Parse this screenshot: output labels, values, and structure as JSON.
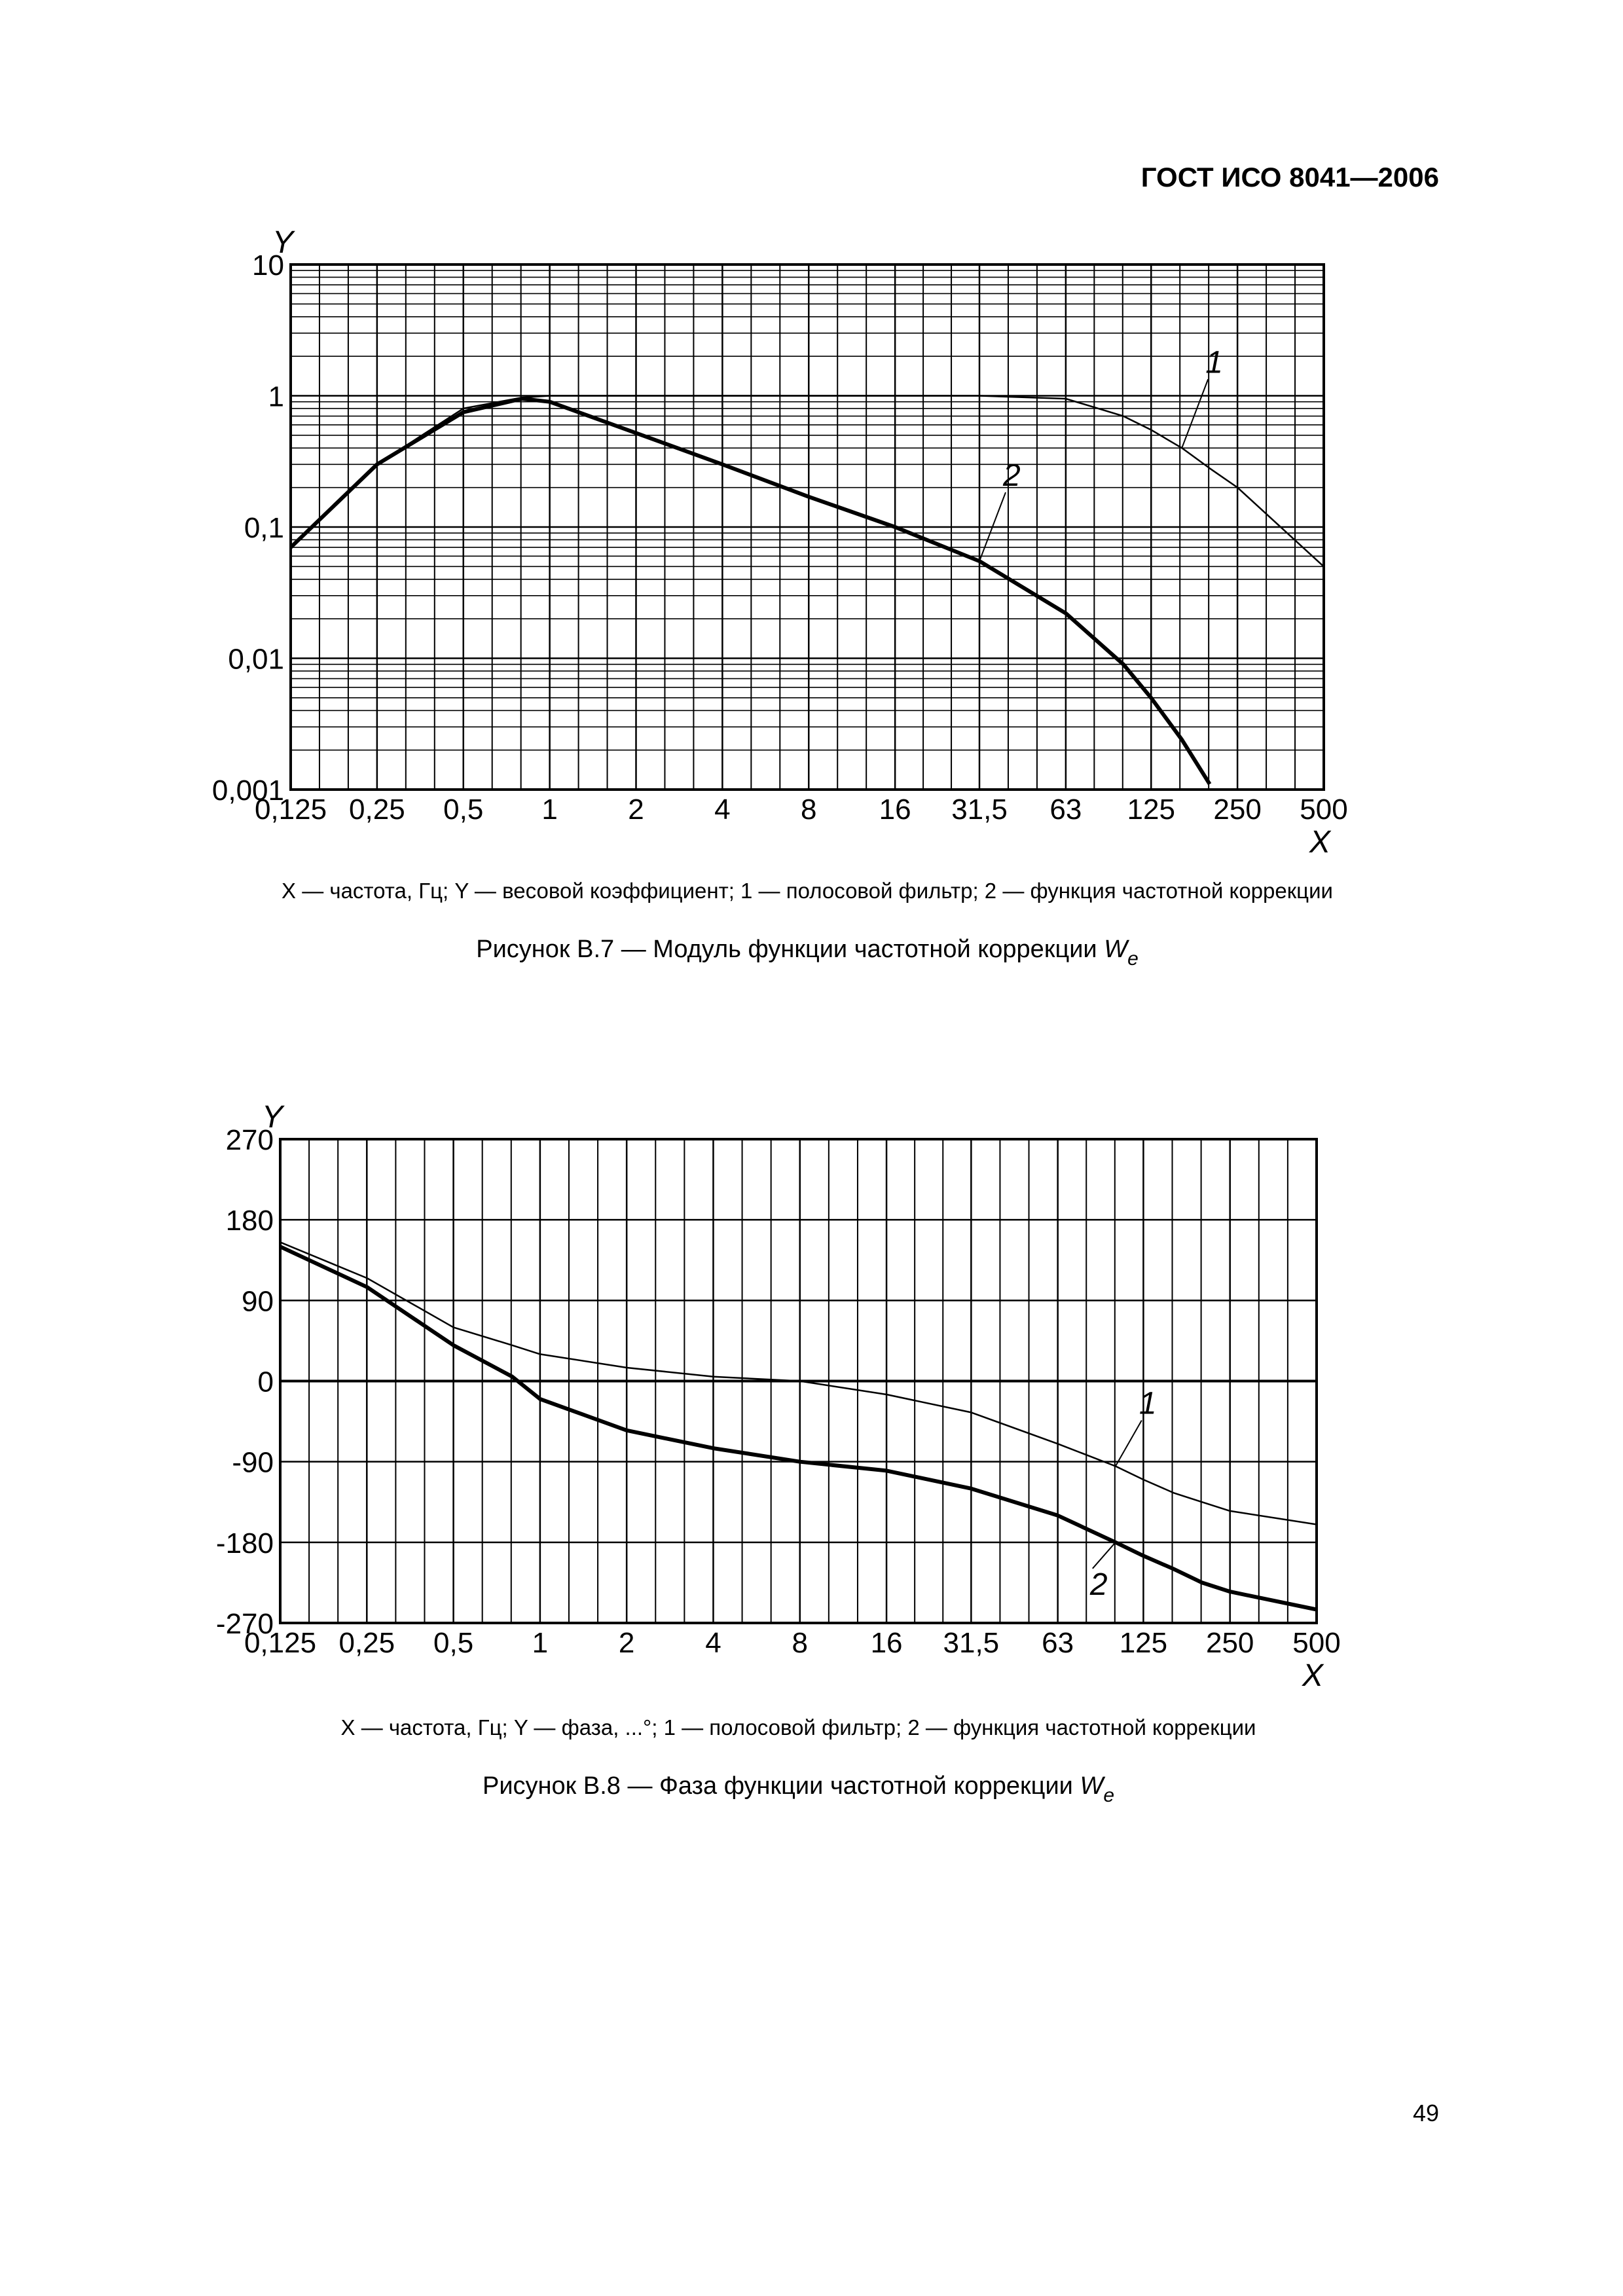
{
  "header": "ГОСТ ИСО 8041—2006",
  "page_number": "49",
  "chart_data": [
    {
      "type": "line",
      "x_label": "X",
      "y_label": "Y",
      "xscale": "log",
      "yscale": "log",
      "xlim": [
        0.125,
        500
      ],
      "ylim": [
        0.001,
        10
      ],
      "xticks": [
        {
          "value": 0.125,
          "label": "0,125"
        },
        {
          "value": 0.25,
          "label": "0,25"
        },
        {
          "value": 0.5,
          "label": "0,5"
        },
        1,
        2,
        4,
        8,
        16,
        {
          "value": 31.5,
          "label": "31,5"
        },
        63,
        125,
        250,
        500
      ],
      "yticks": [
        {
          "value": 0.001,
          "label": "0,001"
        },
        {
          "value": 0.01,
          "label": "0,01"
        },
        {
          "value": 0.1,
          "label": "0,1"
        },
        1,
        10
      ],
      "grid": true,
      "minor_grid": [
        "x",
        "y"
      ],
      "x": [
        0.125,
        0.25,
        0.5,
        0.8,
        1,
        2,
        4,
        8,
        16,
        31.5,
        63,
        100,
        125,
        160,
        200,
        250,
        500
      ],
      "series": [
        {
          "name": "1",
          "color": "#000000",
          "linewidth": 2.5,
          "values": [
            0.07,
            0.3,
            0.8,
            0.97,
            1,
            1,
            1,
            1,
            1,
            1,
            0.95,
            0.7,
            0.55,
            0.4,
            0.28,
            0.2,
            0.05
          ]
        },
        {
          "name": "2",
          "color": "#000000",
          "linewidth": 6,
          "values": [
            0.07,
            0.3,
            0.75,
            0.95,
            0.9,
            0.52,
            0.3,
            0.17,
            0.1,
            0.055,
            0.022,
            0.009,
            0.005,
            0.0024,
            0.0011,
            null,
            null
          ]
        }
      ],
      "note": "X — частота, Гц; Y — весовой коэффициент; 1 — полосовой фильтр; 2 — функция частотной коррекции",
      "caption": {
        "text": "Рисунок В.7 — Модуль функции частотной коррекции ",
        "symbol": "W",
        "subscript": "e"
      }
    },
    {
      "type": "line",
      "x_label": "X",
      "y_label": "Y",
      "xscale": "log",
      "yscale": "linear",
      "xlim": [
        0.125,
        500
      ],
      "ylim": [
        -270,
        270
      ],
      "xticks": [
        {
          "value": 0.125,
          "label": "0,125"
        },
        {
          "value": 0.25,
          "label": "0,25"
        },
        {
          "value": 0.5,
          "label": "0,5"
        },
        1,
        2,
        4,
        8,
        16,
        {
          "value": 31.5,
          "label": "31,5"
        },
        63,
        125,
        250,
        500
      ],
      "yticks": [
        -270,
        -180,
        -90,
        0,
        90,
        180,
        270
      ],
      "grid": true,
      "minor_grid": [
        "x"
      ],
      "x": [
        0.125,
        0.25,
        0.5,
        0.8,
        1,
        2,
        4,
        8,
        16,
        31.5,
        63,
        100,
        125,
        160,
        200,
        250,
        500
      ],
      "series": [
        {
          "name": "1",
          "color": "#000000",
          "linewidth": 2.5,
          "values": [
            155,
            115,
            60,
            40,
            30,
            15,
            5,
            0,
            -15,
            -35,
            -70,
            -95,
            -110,
            -125,
            -135,
            -145,
            -160
          ]
        },
        {
          "name": "2",
          "color": "#000000",
          "linewidth": 6,
          "values": [
            150,
            105,
            40,
            5,
            -20,
            -55,
            -75,
            -90,
            -100,
            -120,
            -150,
            -180,
            -195,
            -210,
            -225,
            -235,
            -255
          ]
        }
      ],
      "note": "X — частота, Гц; Y — фаза, ...°; 1 — полосовой фильтр; 2 — функция частотной коррекции",
      "caption": {
        "text": "Рисунок В.8 — Фаза функции частотной коррекции ",
        "symbol": "W",
        "subscript": "e"
      }
    }
  ]
}
